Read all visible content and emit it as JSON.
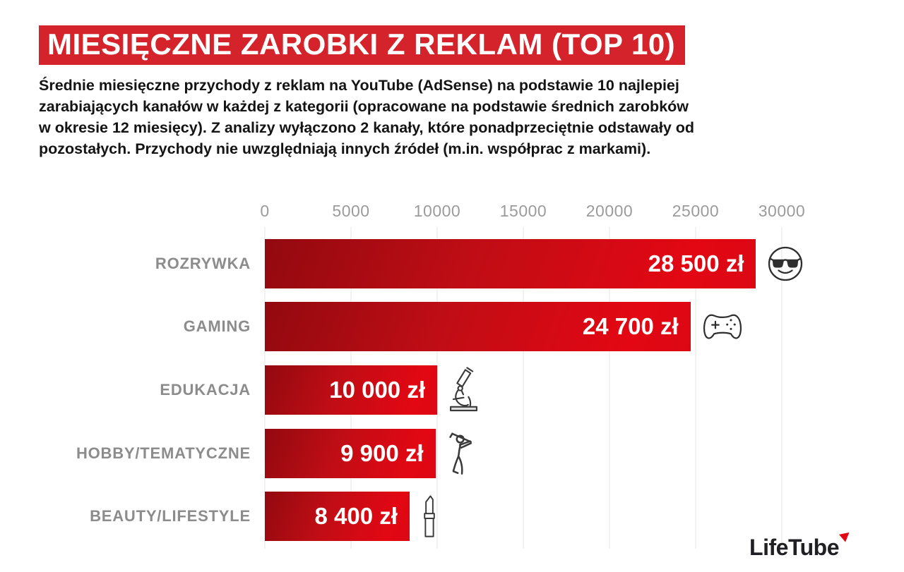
{
  "title": "MIESIĘCZNE ZAROBKI Z REKLAM (TOP 10)",
  "description_lines": [
    "Średnie miesięczne przychody z reklam na YouTube (AdSense) na podstawie 10 najlepiej",
    "zarabiających kanałów w każdej z kategorii (opracowane na podstawie średnich zarobków",
    "w okresie 12 miesięcy). Z analizy wyłączono 2 kanały, które ponadprzeciętnie odstawały od",
    "pozostałych. Przychody nie uwzględniają innych źródeł (m.in. współprac z markami)."
  ],
  "logo": {
    "text": "LifeTube"
  },
  "colors": {
    "title_band_red": "#d4232a",
    "bar_gradient_dark": "#92090f",
    "bar_gradient_bright": "#e20713",
    "category_label_gray": "#8c8c8c",
    "tick_gray": "#9b9b9b",
    "gridline_gray": "#e4e4e4",
    "value_text": "#ffffff",
    "body_text": "#141414",
    "logo_accent_red": "#e30613"
  },
  "chart_data": {
    "type": "bar",
    "orientation": "horizontal",
    "title": "MIESIĘCZNE ZAROBKI Z REKLAM (TOP 10)",
    "xlabel": "",
    "ylabel": "",
    "xlim": [
      0,
      30000
    ],
    "x_ticks": [
      0,
      5000,
      10000,
      15000,
      20000,
      25000,
      30000
    ],
    "grid": true,
    "legend": false,
    "categories": [
      "ROZRYWKA",
      "GAMING",
      "EDUKACJA",
      "HOBBY/TEMATYCZNE",
      "BEAUTY/LIFESTYLE"
    ],
    "values": [
      28500,
      24700,
      10000,
      9900,
      8400
    ],
    "value_labels": [
      "28 500 zł",
      "24 700 zł",
      "10 000 zł",
      "9 900 zł",
      "8 400 zł"
    ],
    "unit": "zł",
    "icons": [
      "cool-face-icon",
      "game-controller-icon",
      "microscope-icon",
      "golfer-icon",
      "lipstick-icon"
    ]
  }
}
